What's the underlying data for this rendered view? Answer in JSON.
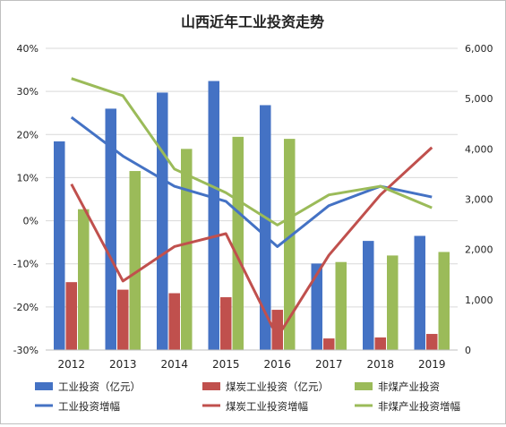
{
  "chart_data": {
    "type": "bar+line",
    "title": "山西近年工业投资走势",
    "categories": [
      "2012",
      "2013",
      "2014",
      "2015",
      "2016",
      "2017",
      "2018",
      "2019"
    ],
    "bar_axis": "right",
    "line_axis": "left",
    "left_axis": {
      "ylim": [
        -30,
        40
      ],
      "ticks": [
        "-30%",
        "-20%",
        "-10%",
        "0%",
        "10%",
        "20%",
        "30%",
        "40%"
      ]
    },
    "right_axis": {
      "ylim": [
        0,
        6000
      ],
      "ticks": [
        "0",
        "1,000",
        "2,000",
        "3,000",
        "4,000",
        "5,000",
        "6,000"
      ]
    },
    "grid": true,
    "legend_position": "bottom",
    "bar_series": [
      {
        "name": "工业投资（亿元）",
        "color": "#4472C4",
        "values": [
          4150,
          4800,
          5120,
          5350,
          4870,
          1720,
          2170,
          2270
        ]
      },
      {
        "name": "煤炭工业投资（亿元）",
        "color": "#C0504D",
        "values": [
          1350,
          1200,
          1130,
          1050,
          800,
          230,
          250,
          320
        ]
      },
      {
        "name": "非煤产业投资",
        "color": "#9BBB59",
        "values": [
          2800,
          3560,
          4000,
          4240,
          4200,
          1750,
          1880,
          1950
        ]
      }
    ],
    "line_series": [
      {
        "name": "工业投资增幅",
        "color": "#4472C4",
        "values": [
          24,
          15,
          8,
          4.5,
          -6,
          3.5,
          8,
          5.5
        ]
      },
      {
        "name": "煤炭工业投资增幅",
        "color": "#C0504D",
        "values": [
          8.5,
          -14,
          -6,
          -3,
          -27,
          -8,
          6,
          17
        ]
      },
      {
        "name": "非煤产业投资增幅",
        "color": "#9BBB59",
        "values": [
          33,
          29,
          12,
          6.5,
          -1,
          6,
          8,
          3
        ]
      }
    ]
  }
}
